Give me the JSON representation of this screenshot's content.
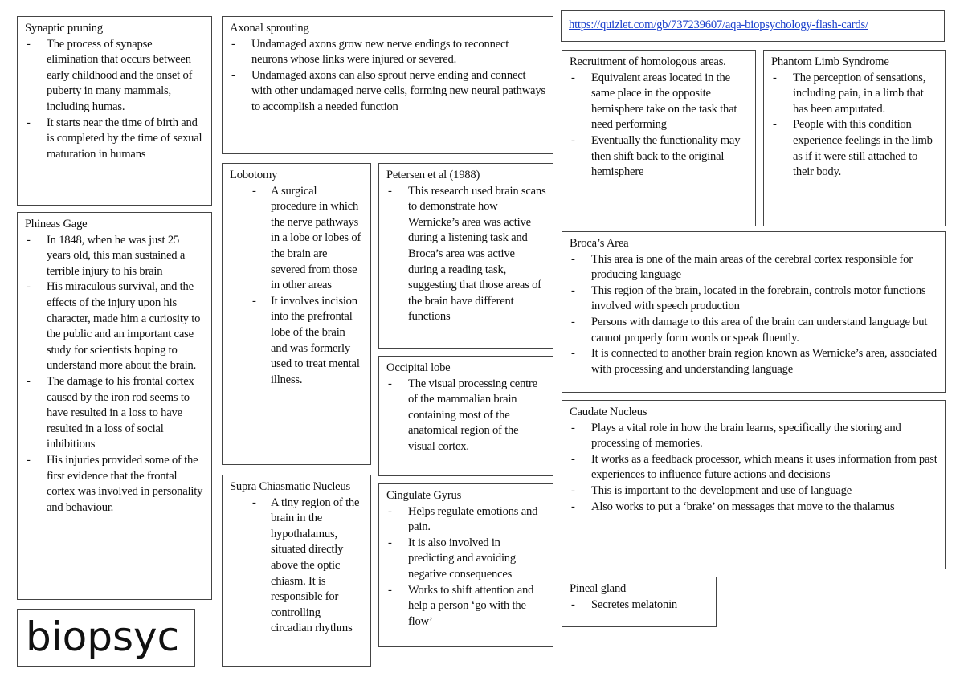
{
  "link": {
    "url": "https://quizlet.com/gb/737239607/aqa-biopsychology-flash-cards/",
    "color": "#1a3fcc"
  },
  "logo_text": "biopsyc",
  "cards": {
    "synaptic": {
      "title": "Synaptic pruning",
      "items": [
        "The process of synapse elimination that occurs between early childhood and the onset of puberty in many mammals, including humas.",
        "It starts near the time of birth and is completed by the time of sexual maturation in humans"
      ]
    },
    "axonal": {
      "title": "Axonal sprouting",
      "items": [
        "Undamaged axons grow new nerve endings to reconnect neurons whose links were injured or severed.",
        "Undamaged axons can also sprout nerve ending and connect with other undamaged nerve cells, forming new neural pathways to accomplish a needed function"
      ]
    },
    "recruitment": {
      "title": "Recruitment of homologous areas.",
      "items": [
        "Equivalent areas located in the same place in the opposite hemisphere take on the task that need performing",
        "Eventually the functionality may then shift back to the original hemisphere"
      ]
    },
    "phantom": {
      "title": "Phantom Limb Syndrome",
      "items": [
        "The perception of sensations, including pain, in a limb that has been amputated.",
        "People with this condition experience feelings in the limb as if it were still attached to their body."
      ]
    },
    "broca": {
      "title": "Broca’s Area",
      "items": [
        "This area is one of the main areas of the cerebral cortex responsible for producing language",
        "This region of the brain, located in the forebrain, controls motor functions involved with speech production",
        "Persons with damage to this area of the brain can understand language but cannot properly form words or speak fluently.",
        "It is connected to another brain region known as Wernicke’s area, associated with processing and understanding language"
      ]
    },
    "caudate": {
      "title": "Caudate Nucleus",
      "items": [
        "Plays a vital role in how the brain learns, specifically the storing and processing of memories.",
        "It works as a feedback processor, which means it uses information from past experiences to influence future actions and decisions",
        "This is important to the development and use of language",
        "Also works to put a ‘brake’ on messages that move to the thalamus"
      ]
    },
    "pineal": {
      "title": "Pineal gland",
      "items": [
        "Secretes melatonin"
      ]
    },
    "phineas": {
      "title": "Phineas Gage",
      "items": [
        "In 1848, when he was just 25 years old, this man sustained a terrible injury to his brain",
        "His miraculous survival, and the effects of the injury upon his character, made him a curiosity to the public and an important case study for scientists hoping to understand more about the brain.",
        "The damage to his frontal cortex caused by the iron rod seems to have resulted in a loss to have resulted in a loss of social inhibitions",
        "His injuries provided some of the first evidence that the frontal cortex was involved in personality and behaviour."
      ]
    },
    "lobotomy": {
      "title": "Lobotomy",
      "items": [
        "A surgical procedure in which the nerve pathways in a lobe or lobes of the brain are severed from those in other areas",
        "It involves incision into the prefrontal lobe of the brain and was formerly used to treat mental illness."
      ]
    },
    "petersen": {
      "title": "Petersen et al (1988)",
      "items": [
        "This research used brain scans to demonstrate how Wernicke’s area was active during a listening task and Broca’s area was active during a reading task, suggesting that those areas of the brain have different functions"
      ]
    },
    "occipital": {
      "title": "Occipital lobe",
      "items": [
        "The visual processing centre of the mammalian brain containing most of the anatomical region of the visual cortex."
      ]
    },
    "supra": {
      "title": "Supra Chiasmatic Nucleus",
      "items": [
        "A tiny region of the brain in the hypothalamus, situated directly above the optic chiasm. It is responsible for controlling circadian rhythms"
      ]
    },
    "cingulate": {
      "title": "Cingulate Gyrus",
      "items": [
        "Helps regulate emotions and pain.",
        "It is also involved in predicting and avoiding negative consequences",
        "Works to shift attention and help a person ‘go with the flow’"
      ]
    }
  }
}
